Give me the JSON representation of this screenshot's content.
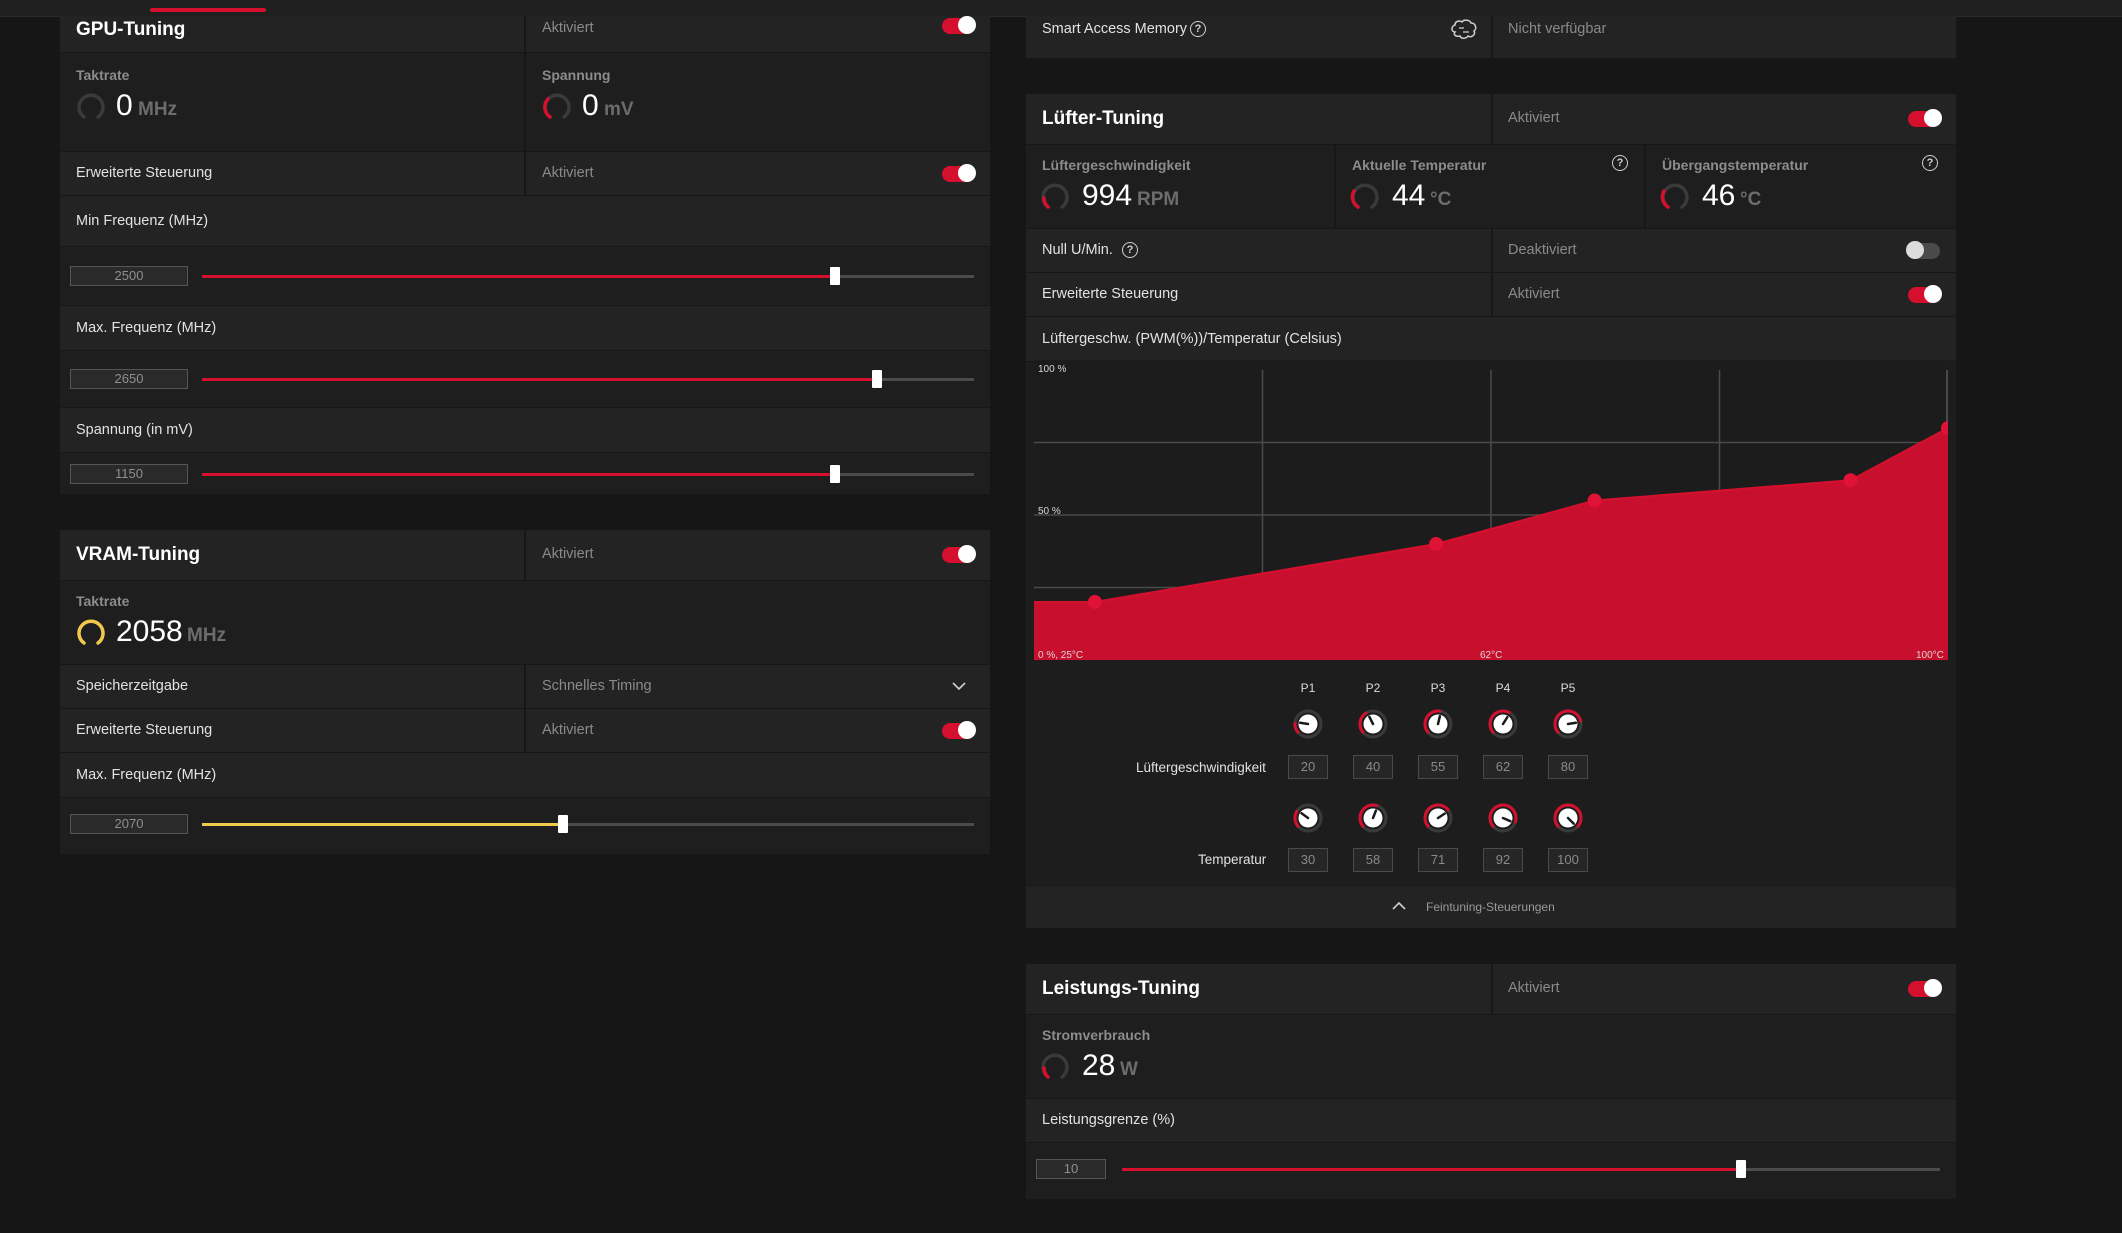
{
  "gpu": {
    "title": "GPU-Tuning",
    "status": "Aktiviert",
    "clock_label": "Taktrate",
    "clock_value": "0",
    "clock_unit": "MHz",
    "voltage_label": "Spannung",
    "voltage_value": "0",
    "voltage_unit": "mV",
    "advanced_label": "Erweiterte Steuerung",
    "advanced_status": "Aktiviert",
    "min_freq_label": "Min Frequenz (MHz)",
    "min_freq_value": "2500",
    "min_freq_level": 0.82,
    "max_freq_label": "Max. Frequenz (MHz)",
    "max_freq_value": "2650",
    "max_freq_level": 0.874,
    "volt_label": "Spannung (in mV)",
    "volt_value": "1150",
    "volt_level": 0.82
  },
  "vram": {
    "title": "VRAM-Tuning",
    "status": "Aktiviert",
    "clock_label": "Taktrate",
    "clock_value": "2058",
    "clock_unit": "MHz",
    "timing_label": "Speicherzeitgabe",
    "timing_value": "Schnelles Timing",
    "advanced_label": "Erweiterte Steuerung",
    "advanced_status": "Aktiviert",
    "max_freq_label": "Max. Frequenz (MHz)",
    "max_freq_value": "2070",
    "max_freq_level": 0.468
  },
  "sam": {
    "label": "Smart Access Memory",
    "status": "Nicht verfügbar"
  },
  "fan": {
    "title": "Lüfter-Tuning",
    "status": "Aktiviert",
    "speed_label": "Lüftergeschwindigkeit",
    "speed_value": "994",
    "speed_unit": "RPM",
    "temp_label": "Aktuelle Temperatur",
    "temp_value": "44",
    "temp_unit": "°C",
    "junction_label": "Übergangstemperatur",
    "junction_value": "46",
    "junction_unit": "°C",
    "zero_rpm_label": "Null U/Min.",
    "zero_rpm_status": "Deaktiviert",
    "advanced_label": "Erweiterte Steuerung",
    "advanced_status": "Aktiviert",
    "curve_label": "Lüftergeschw. (PWM(%))/Temperatur (Celsius)",
    "speed_row_label": "Lüftergeschwindigkeit",
    "temp_row_label": "Temperatur",
    "points": [
      "P1",
      "P2",
      "P3",
      "P4",
      "P5"
    ],
    "speeds": [
      "20",
      "40",
      "55",
      "62",
      "80"
    ],
    "temps": [
      "30",
      "58",
      "71",
      "92",
      "100"
    ],
    "footer": "Feintuning-Steuerungen"
  },
  "chart_data": {
    "type": "area",
    "x": [
      30,
      58,
      71,
      92,
      100
    ],
    "y": [
      20,
      40,
      55,
      62,
      80
    ],
    "y_tick_labels": [
      "100 %",
      "50 %"
    ],
    "x_tick_labels": [
      "0 %, 25°C",
      "62°C",
      "100°C"
    ],
    "xlim": [
      25,
      100
    ],
    "ylim": [
      0,
      100
    ],
    "color": "#c8102e"
  },
  "power": {
    "title": "Leistungs-Tuning",
    "status": "Aktiviert",
    "consumption_label": "Stromverbrauch",
    "consumption_value": "28",
    "consumption_unit": "W",
    "limit_label": "Leistungsgrenze (%)",
    "limit_value": "10",
    "limit_level": 0.757
  },
  "colors": {
    "accent": "#d5102e",
    "vram_accent": "#f2c94c"
  }
}
